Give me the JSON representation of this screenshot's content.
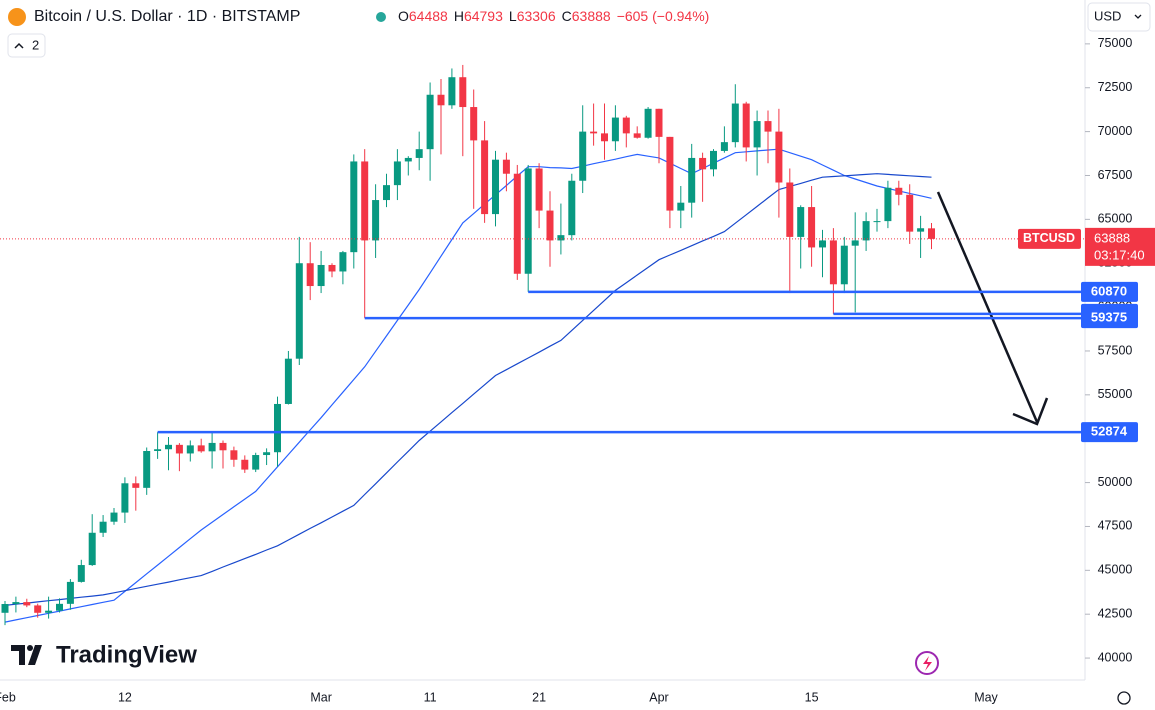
{
  "header": {
    "symbol": "Bitcoin / U.S. Dollar · 1D · BITSTAMP",
    "ohlc_prefixes": [
      "O",
      "H",
      "L",
      "C"
    ],
    "change": {
      "value": -605,
      "label": "−605 (−0.94%)"
    },
    "indicator_count": 2,
    "currency": "USD"
  },
  "branding": "TradingView",
  "chart_data": {
    "type": "candlestick",
    "categories": [
      "Feb",
      null,
      null,
      null,
      null,
      null,
      null,
      null,
      null,
      null,
      null,
      "12",
      null,
      null,
      null,
      null,
      null,
      null,
      null,
      null,
      null,
      null,
      null,
      null,
      null,
      null,
      null,
      null,
      null,
      "Mar",
      null,
      null,
      null,
      null,
      null,
      null,
      null,
      null,
      null,
      "11",
      null,
      null,
      null,
      null,
      null,
      null,
      null,
      null,
      null,
      "21",
      null,
      null,
      null,
      null,
      null,
      null,
      null,
      null,
      null,
      null,
      "Apr",
      null,
      null,
      null,
      null,
      null,
      null,
      null,
      null,
      null,
      null,
      null,
      null,
      null,
      "15",
      null,
      null,
      null,
      null,
      null,
      null,
      null,
      null,
      null,
      null,
      null,
      null,
      null,
      null,
      null,
      "May",
      null,
      null,
      null,
      null,
      null,
      null,
      null,
      null
    ],
    "open": [
      42580,
      43080,
      43190,
      43000,
      42580,
      42700,
      43090,
      44340,
      45300,
      47140,
      47770,
      48290,
      49960,
      49700,
      51800,
      51900,
      52150,
      51660,
      52120,
      51780,
      52260,
      51840,
      51300,
      50740,
      51570,
      51730,
      54480,
      57060,
      62500,
      61200,
      62400,
      62030,
      63130,
      68300,
      63800,
      66100,
      66950,
      68300,
      68500,
      69000,
      72100,
      71500,
      73100,
      71400,
      69500,
      65300,
      68400,
      67600,
      61900,
      67900,
      65500,
      63800,
      64100,
      67200,
      70000,
      69900,
      69450,
      70800,
      69900,
      69650,
      71300,
      69700,
      65500,
      65950,
      68500,
      67850,
      68900,
      69400,
      71600,
      69100,
      70600,
      70000,
      67100,
      64000,
      65700,
      63400,
      63800,
      61300,
      63500,
      63800,
      64900,
      64900,
      66800,
      66400,
      64300,
      64488,
      null,
      null,
      null,
      null,
      null,
      null,
      null,
      null,
      null,
      null,
      null,
      null,
      null
    ],
    "high": [
      43250,
      43500,
      43380,
      43100,
      43500,
      43400,
      44500,
      45600,
      48200,
      48150,
      48550,
      50300,
      50350,
      52000,
      52874,
      52600,
      52250,
      52400,
      52500,
      52900,
      52400,
      52050,
      51550,
      51700,
      51950,
      54900,
      57500,
      64000,
      63700,
      63200,
      62500,
      63200,
      68700,
      69000,
      67000,
      67600,
      69000,
      68600,
      70000,
      72800,
      73000,
      73600,
      73800,
      72400,
      70600,
      68900,
      68800,
      68100,
      68100,
      68200,
      66600,
      65900,
      67600,
      71500,
      71600,
      71600,
      71500,
      70900,
      70300,
      71400,
      71300,
      69700,
      66900,
      69300,
      68800,
      69000,
      70300,
      72700,
      71700,
      71200,
      71200,
      71300,
      67900,
      65800,
      66900,
      64400,
      64500,
      64000,
      65400,
      65400,
      65600,
      67200,
      67200,
      67000,
      65200,
      64793,
      null,
      null,
      null,
      null,
      null,
      null,
      null,
      null,
      null,
      null,
      null,
      null,
      null
    ],
    "low": [
      41880,
      42600,
      42900,
      42300,
      42250,
      42600,
      42750,
      44300,
      45250,
      46900,
      47600,
      47700,
      48400,
      49300,
      51350,
      50700,
      50650,
      51200,
      51700,
      50800,
      50800,
      50900,
      50550,
      50600,
      51000,
      50900,
      54450,
      56700,
      60400,
      60800,
      61700,
      61300,
      62200,
      59375,
      62800,
      65700,
      66100,
      67500,
      67800,
      67200,
      68700,
      71300,
      68600,
      65600,
      64800,
      64600,
      66600,
      61550,
      60870,
      64500,
      62300,
      63000,
      63800,
      66500,
      69200,
      68400,
      68900,
      69100,
      69600,
      69600,
      68200,
      64500,
      64500,
      65100,
      66000,
      67450,
      68800,
      69100,
      68300,
      67500,
      68200,
      65100,
      60800,
      62200,
      62300,
      61700,
      59611,
      60800,
      59700,
      63200,
      64300,
      64500,
      65800,
      63600,
      62800,
      63306,
      null,
      null,
      null,
      null,
      null,
      null,
      null,
      null,
      null,
      null,
      null,
      null,
      null
    ],
    "close": [
      43080,
      43190,
      43000,
      42580,
      42700,
      43090,
      44340,
      45300,
      47140,
      47770,
      48290,
      49960,
      49700,
      51800,
      51900,
      52150,
      51660,
      52120,
      51780,
      52260,
      51840,
      51300,
      50740,
      51570,
      51730,
      54480,
      57060,
      62500,
      61200,
      62400,
      62030,
      63130,
      68300,
      63800,
      66100,
      66950,
      68300,
      68500,
      69000,
      72100,
      71500,
      73100,
      71400,
      69500,
      65300,
      68400,
      67600,
      61900,
      67900,
      65500,
      63800,
      64100,
      67200,
      70000,
      69900,
      69450,
      70800,
      69900,
      69650,
      71300,
      69700,
      65500,
      65950,
      68500,
      67850,
      68900,
      69400,
      71600,
      69100,
      70600,
      70000,
      67100,
      64000,
      65700,
      63400,
      63800,
      61300,
      63500,
      63800,
      64900,
      64900,
      66800,
      66400,
      64300,
      64493,
      63888,
      null,
      null,
      null,
      null,
      null,
      null,
      null,
      null,
      null,
      null,
      null,
      null,
      null
    ],
    "up_color": "#089981",
    "down_color": "#f23645",
    "ylim": [
      38750,
      77500
    ],
    "yticks": [
      40000,
      42500,
      45000,
      47500,
      50000,
      52500,
      55000,
      57500,
      60000,
      62500,
      65000,
      67500,
      70000,
      72500,
      75000
    ],
    "overlays": [
      {
        "color": "#2962ff",
        "values": [
          42050,
          42175,
          42300,
          42425,
          42550,
          42675,
          42800,
          42925,
          43050,
          43175,
          43300,
          43800,
          44300,
          44800,
          45300,
          45800,
          46300,
          46800,
          47300,
          47740,
          48180,
          48620,
          49060,
          49500,
          50200,
          50900,
          51600,
          52300,
          53000,
          53700,
          54425,
          55150,
          55875,
          56600,
          57480,
          58360,
          59240,
          60120,
          61000,
          61950,
          62900,
          63850,
          64800,
          65330,
          65870,
          66400,
          66930,
          67470,
          68000,
          68000,
          67950,
          67930,
          67900,
          68030,
          68170,
          68300,
          68430,
          68570,
          68700,
          68600,
          68500,
          68200,
          67900,
          67600,
          67900,
          68200,
          68500,
          68800,
          68850,
          68900,
          68950,
          69000,
          68800,
          68600,
          68400,
          68100,
          67800,
          67500,
          67300,
          67100,
          66900,
          66760,
          66620,
          66480,
          66340,
          66200,
          null,
          null,
          null,
          null,
          null,
          null,
          null,
          null,
          null,
          null,
          null,
          null,
          null
        ]
      },
      {
        "color": "#1848cc",
        "values": [
          43000,
          43070,
          43130,
          43200,
          43270,
          43330,
          43400,
          43470,
          43530,
          43600,
          43720,
          43840,
          43970,
          44090,
          44210,
          44330,
          44460,
          44580,
          44700,
          44940,
          45190,
          45430,
          45670,
          45910,
          46160,
          46400,
          46730,
          47060,
          47390,
          47710,
          48040,
          48370,
          48700,
          49320,
          49930,
          50550,
          51170,
          51780,
          52400,
          52930,
          53460,
          53990,
          54510,
          55040,
          55570,
          56100,
          56430,
          56770,
          57100,
          57430,
          57770,
          58100,
          58670,
          59240,
          59810,
          60380,
          60950,
          61390,
          61830,
          62260,
          62700,
          62970,
          63230,
          63500,
          63770,
          64030,
          64300,
          64780,
          65260,
          65740,
          66220,
          66700,
          66880,
          67050,
          67230,
          67400,
          67440,
          67480,
          67520,
          67560,
          67600,
          67560,
          67520,
          67480,
          67440,
          67400,
          null,
          null,
          null,
          null,
          null,
          null,
          null,
          null,
          null,
          null,
          null,
          null,
          null
        ]
      }
    ],
    "levels": [
      {
        "value": 60870,
        "color": "#2962ff"
      },
      {
        "value": 59611,
        "color": "#2962ff"
      },
      {
        "value": 59375,
        "color": "#2962ff"
      },
      {
        "value": 52874,
        "color": "#2962ff"
      }
    ],
    "last_price": {
      "symbol": "BTCUSD",
      "countdown": "03:17:40"
    }
  }
}
